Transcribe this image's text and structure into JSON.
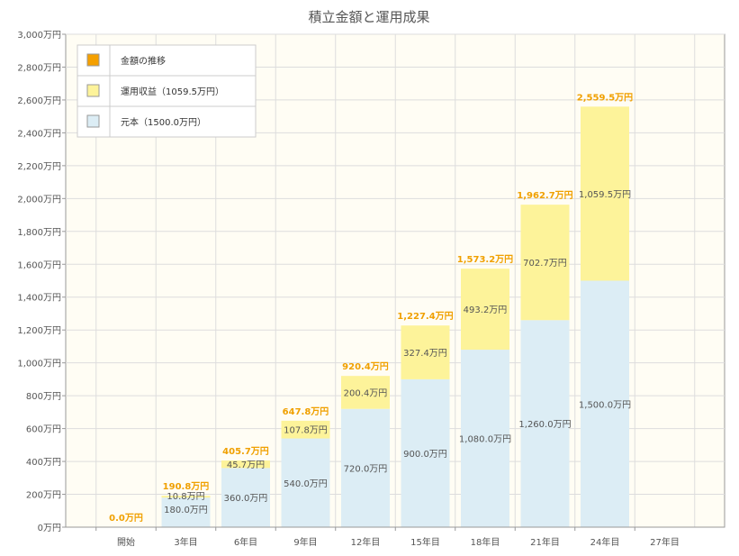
{
  "chart_data": {
    "type": "bar",
    "stacked": true,
    "title": "積立金額と運用成果",
    "categories": [
      "開始",
      "3年目",
      "6年目",
      "9年目",
      "12年目",
      "15年目",
      "18年目",
      "21年目",
      "24年目",
      "27年目"
    ],
    "series": [
      {
        "name": "元本（1500.0万円）",
        "color": "#dcedf5",
        "values": [
          0,
          180,
          360,
          540,
          720,
          900,
          1080,
          1260,
          1500,
          null
        ],
        "labels": [
          "",
          "180.0万円",
          "360.0万円",
          "540.0万円",
          "720.0万円",
          "900.0万円",
          "1,080.0万円",
          "1,260.0万円",
          "1,500.0万円",
          ""
        ]
      },
      {
        "name": "運用収益（1059.5万円）",
        "color": "#fdf39a",
        "values": [
          0,
          10.8,
          45.7,
          107.8,
          200.4,
          327.4,
          493.2,
          702.7,
          1059.5,
          null
        ],
        "labels": [
          "",
          "10.8万円",
          "45.7万円",
          "107.8万円",
          "200.4万円",
          "327.4万円",
          "493.2万円",
          "702.7万円",
          "1,059.5万円",
          ""
        ]
      }
    ],
    "totals": {
      "name": "金額の推移",
      "color": "#f5a000",
      "values": [
        0,
        190.8,
        405.7,
        647.8,
        920.4,
        1227.4,
        1573.2,
        1962.7,
        2559.5,
        null
      ],
      "labels": [
        "0.0万円",
        "190.8万円",
        "405.7万円",
        "647.8万円",
        "920.4万円",
        "1,227.4万円",
        "1,573.2万円",
        "1,962.7万円",
        "2,559.5万円",
        ""
      ]
    },
    "y_ticks": [
      "0万円",
      "200万円",
      "400万円",
      "600万円",
      "800万円",
      "1,000万円",
      "1,200万円",
      "1,400万円",
      "1,600万円",
      "1,800万円",
      "2,000万円",
      "2,200万円",
      "2,400万円",
      "2,600万円",
      "2,800万円",
      "3,000万円"
    ],
    "ylim": [
      0,
      3000
    ],
    "grid": true,
    "legend_position": "top-left",
    "legend": [
      "金額の推移",
      "運用収益（1059.5万円）",
      "元本（1500.0万円）"
    ]
  },
  "colors": {
    "plot_background": "#fffdf4",
    "grid": "#dddddd",
    "axis": "#999999"
  }
}
